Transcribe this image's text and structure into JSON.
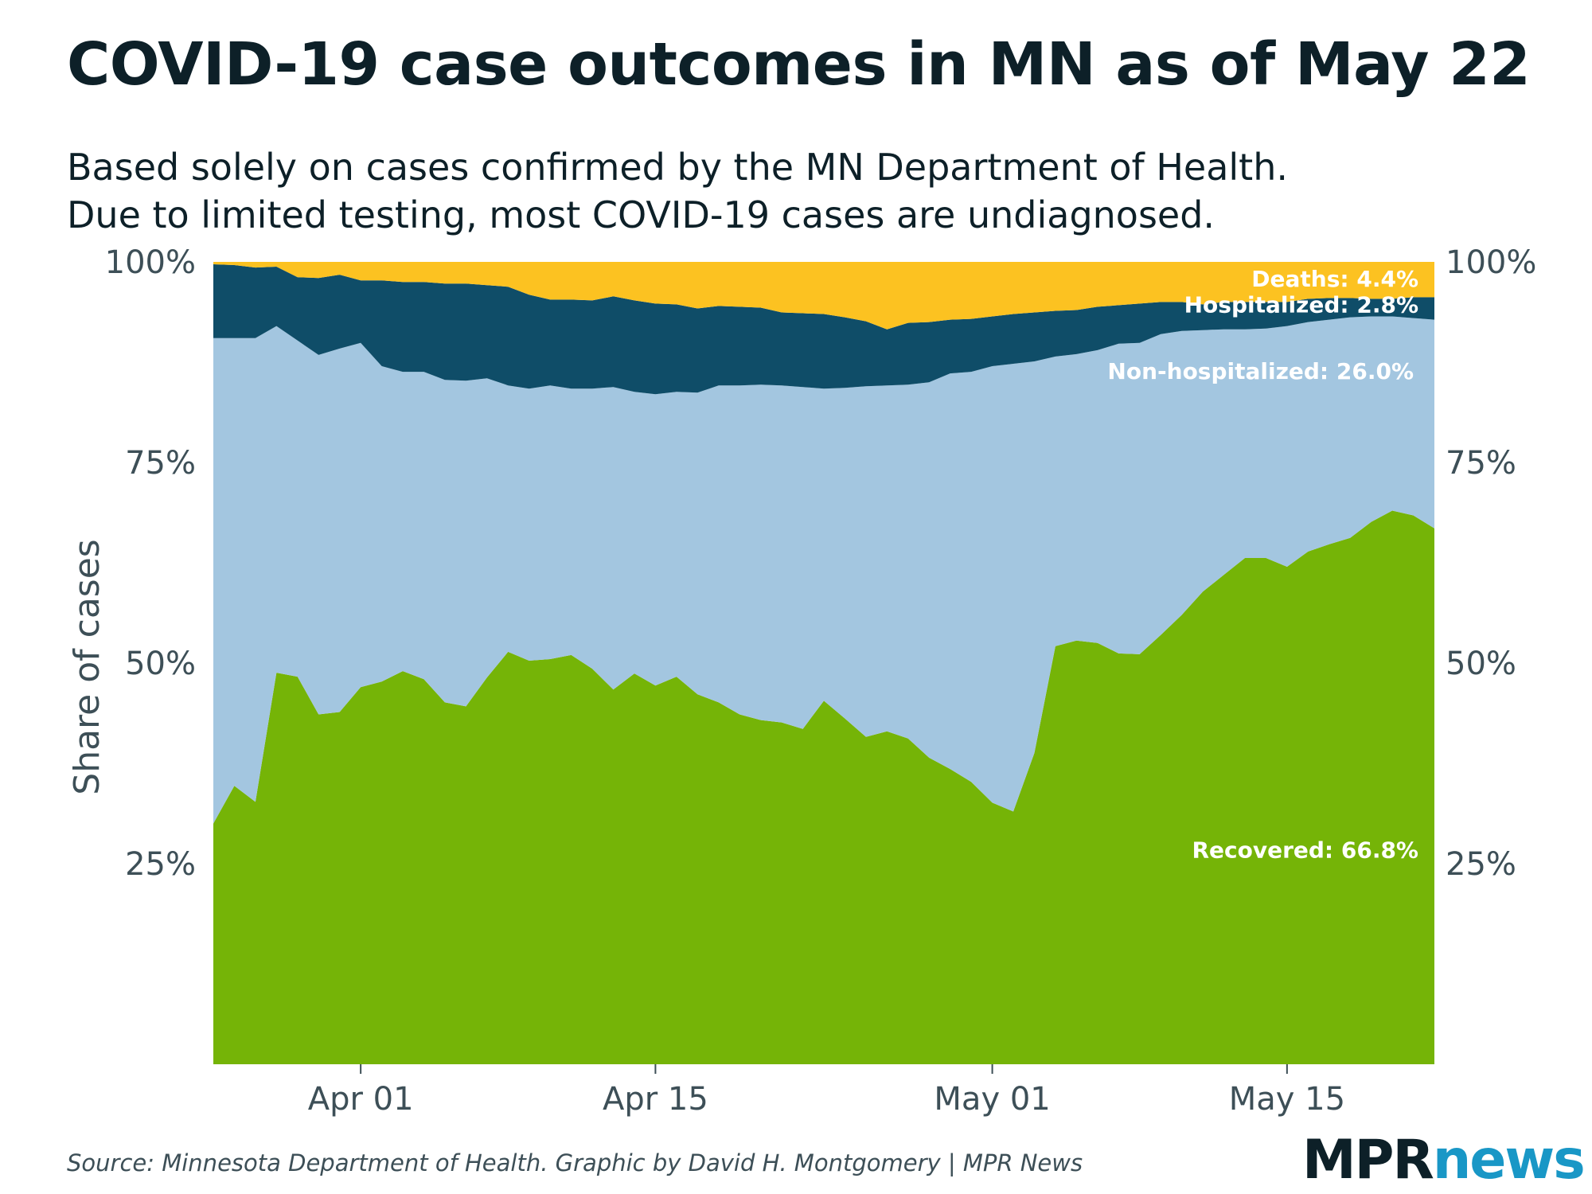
{
  "header": {
    "title": "COVID-19 case outcomes in MN as of May 22",
    "subtitle_line1": "Based solely on cases confirmed by the MN Department of Health.",
    "subtitle_line2": "Due to limited testing, most COVID-19 cases are undiagnosed."
  },
  "footer": {
    "source": "Source: Minnesota Department of Health. Graphic by David H. Montgomery | MPR News",
    "logo_mpr": "MPR",
    "logo_news": "news"
  },
  "colors": {
    "recovered": "#75b407",
    "non_hospitalized": "#a3c6e0",
    "hospitalized": "#0f4d68",
    "deaths": "#fcc221",
    "text": "#0d2028",
    "axis_text": "#3d4f57",
    "logo_news": "#1997c6"
  },
  "chart_data": {
    "type": "area",
    "stacked": true,
    "ylabel": "Share of cases",
    "y_ticks": [
      25,
      50,
      75,
      100
    ],
    "y_tick_labels": [
      "25%",
      "50%",
      "75%",
      "100%"
    ],
    "ylim": [
      0,
      100
    ],
    "x_start": "2020-03-25",
    "x_end": "2020-05-22",
    "x_ticks": [
      "2020-04-01",
      "2020-04-15",
      "2020-05-01",
      "2020-05-15"
    ],
    "x_tick_labels": [
      "Apr 01",
      "Apr 15",
      "May 01",
      "May 15"
    ],
    "x": [
      "2020-03-25",
      "2020-03-26",
      "2020-03-27",
      "2020-03-28",
      "2020-03-29",
      "2020-03-30",
      "2020-03-31",
      "2020-04-01",
      "2020-04-02",
      "2020-04-03",
      "2020-04-04",
      "2020-04-05",
      "2020-04-06",
      "2020-04-07",
      "2020-04-08",
      "2020-04-09",
      "2020-04-10",
      "2020-04-11",
      "2020-04-12",
      "2020-04-13",
      "2020-04-14",
      "2020-04-15",
      "2020-04-16",
      "2020-04-17",
      "2020-04-18",
      "2020-04-19",
      "2020-04-20",
      "2020-04-21",
      "2020-04-22",
      "2020-04-23",
      "2020-04-24",
      "2020-04-25",
      "2020-04-26",
      "2020-04-27",
      "2020-04-28",
      "2020-04-29",
      "2020-04-30",
      "2020-05-01",
      "2020-05-02",
      "2020-05-03",
      "2020-05-04",
      "2020-05-05",
      "2020-05-06",
      "2020-05-07",
      "2020-05-08",
      "2020-05-09",
      "2020-05-10",
      "2020-05-11",
      "2020-05-12",
      "2020-05-13",
      "2020-05-14",
      "2020-05-15",
      "2020-05-16",
      "2020-05-17",
      "2020-05-18",
      "2020-05-19",
      "2020-05-20",
      "2020-05-21",
      "2020-05-22"
    ],
    "series": [
      {
        "name": "Recovered",
        "label": "Recovered: 66.8%",
        "color": "#75b407",
        "values": [
          30.0,
          34.7,
          32.7,
          48.8,
          48.3,
          43.6,
          43.9,
          47.0,
          47.7,
          49.0,
          48.0,
          45.1,
          44.6,
          48.2,
          51.4,
          50.3,
          50.5,
          51.0,
          49.3,
          46.7,
          48.7,
          47.2,
          48.3,
          46.1,
          45.1,
          43.6,
          42.9,
          42.6,
          41.8,
          45.3,
          43.1,
          40.8,
          41.5,
          40.6,
          38.2,
          36.8,
          35.2,
          32.6,
          31.5,
          38.8,
          52.1,
          52.8,
          52.5,
          51.2,
          51.1,
          53.5,
          56.0,
          58.9,
          61.0,
          63.1,
          63.1,
          62.0,
          63.9,
          64.8,
          65.6,
          67.6,
          69.0,
          68.4,
          66.8
        ]
      },
      {
        "name": "Non-hospitalized",
        "label": "Non-hospitalized: 26.0%",
        "color": "#a3c6e0",
        "values": [
          60.5,
          55.8,
          57.8,
          43.2,
          41.9,
          44.8,
          45.3,
          42.9,
          39.3,
          37.3,
          38.3,
          40.2,
          40.6,
          37.3,
          33.2,
          33.9,
          34.1,
          33.2,
          34.9,
          37.7,
          35.1,
          36.3,
          35.5,
          37.6,
          39.5,
          41.0,
          41.8,
          42.0,
          42.6,
          38.9,
          41.2,
          43.7,
          43.1,
          44.1,
          46.8,
          49.3,
          51.1,
          54.4,
          55.8,
          48.8,
          36.1,
          35.7,
          36.5,
          38.6,
          38.8,
          37.5,
          35.4,
          32.6,
          30.6,
          28.5,
          28.6,
          30.0,
          28.6,
          28.0,
          27.5,
          25.6,
          24.2,
          24.6,
          26.0
        ]
      },
      {
        "name": "Hospitalized",
        "label": "Hospitalized: 2.8%",
        "color": "#0f4d68",
        "values": [
          9.2,
          9.1,
          8.8,
          7.4,
          7.9,
          9.6,
          9.2,
          7.8,
          10.7,
          11.2,
          11.2,
          12.0,
          12.1,
          11.6,
          12.3,
          11.7,
          10.7,
          11.1,
          11.0,
          11.3,
          11.4,
          11.3,
          10.9,
          10.5,
          9.9,
          9.8,
          9.6,
          9.1,
          9.2,
          9.3,
          8.8,
          8.1,
          7.0,
          7.7,
          7.5,
          6.7,
          6.6,
          6.2,
          6.2,
          6.1,
          5.7,
          5.5,
          5.4,
          4.8,
          4.9,
          4.0,
          3.6,
          3.2,
          3.4,
          3.4,
          3.3,
          3.0,
          2.9,
          2.7,
          2.4,
          2.2,
          2.2,
          2.6,
          2.8
        ]
      },
      {
        "name": "Deaths",
        "label": "Deaths: 4.4%",
        "color": "#fcc221",
        "values": [
          0.3,
          0.4,
          0.7,
          0.6,
          1.9,
          2.0,
          1.6,
          2.3,
          2.3,
          2.5,
          2.5,
          2.7,
          2.7,
          2.9,
          3.1,
          4.1,
          4.7,
          4.7,
          4.8,
          4.3,
          4.8,
          5.2,
          5.3,
          5.8,
          5.5,
          5.6,
          5.7,
          6.3,
          6.4,
          6.5,
          6.9,
          7.4,
          8.4,
          7.6,
          7.5,
          7.2,
          7.1,
          6.8,
          6.5,
          6.3,
          6.1,
          6.0,
          5.6,
          5.4,
          5.2,
          5.0,
          5.0,
          5.3,
          5.0,
          5.0,
          5.0,
          5.0,
          4.6,
          4.5,
          4.5,
          4.6,
          4.6,
          4.4,
          4.4
        ]
      }
    ],
    "grid": false,
    "legend": "direct labels at right edge"
  }
}
